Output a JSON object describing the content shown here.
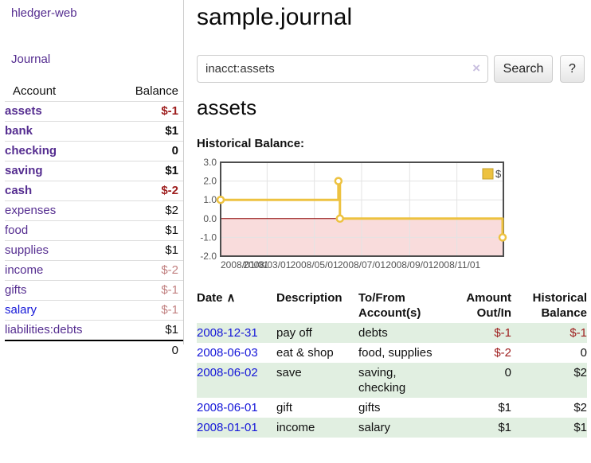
{
  "colors": {
    "purple": "#552d90",
    "blue": "#1517d8",
    "neg": "#9d1c1c",
    "negdim": "#c17f7f",
    "gold": "#edc240",
    "goldborder": "#c3a02c",
    "stripe": "#e1efe1",
    "pink": "#f9dcdc",
    "zeroline": "#8b0000",
    "axis": "#545454",
    "grid": "#e3e3e3",
    "border": "#4d4d4d"
  },
  "sidebar": {
    "brand": "hledger-web",
    "nav_journal": "Journal",
    "header": {
      "account": "Account",
      "balance": "Balance"
    },
    "accounts": [
      {
        "name": "assets",
        "level": 1,
        "bold": true,
        "name_color": "purple",
        "balance": "$-1",
        "tone": "neg"
      },
      {
        "name": "bank",
        "level": 2,
        "bold": true,
        "name_color": "purple",
        "balance": "$1",
        "tone": "pos"
      },
      {
        "name": "checking",
        "level": 3,
        "bold": true,
        "name_color": "purple",
        "balance": "0",
        "tone": "pos"
      },
      {
        "name": "saving",
        "level": 3,
        "bold": true,
        "name_color": "purple",
        "balance": "$1",
        "tone": "pos"
      },
      {
        "name": "cash",
        "level": 2,
        "bold": true,
        "name_color": "purple",
        "balance": "$-2",
        "tone": "neg"
      },
      {
        "name": "expenses",
        "level": 1,
        "bold": false,
        "name_color": "purple",
        "balance": "$2",
        "tone": "pos"
      },
      {
        "name": "food",
        "level": 2,
        "bold": false,
        "name_color": "purple",
        "balance": "$1",
        "tone": "pos"
      },
      {
        "name": "supplies",
        "level": 2,
        "bold": false,
        "name_color": "purple",
        "balance": "$1",
        "tone": "pos"
      },
      {
        "name": "income",
        "level": 1,
        "bold": false,
        "name_color": "purple",
        "balance": "$-2",
        "tone": "negdim"
      },
      {
        "name": "gifts",
        "level": 2,
        "bold": false,
        "name_color": "purple",
        "balance": "$-1",
        "tone": "negdim"
      },
      {
        "name": "salary",
        "level": 2,
        "bold": false,
        "name_color": "blue",
        "balance": "$-1",
        "tone": "negdim"
      },
      {
        "name": "liabilities:debts",
        "level": 1,
        "bold": false,
        "name_color": "purple",
        "balance": "$1",
        "tone": "pos"
      }
    ],
    "total": "0"
  },
  "main": {
    "title": "sample.journal",
    "search": {
      "value": "inacct:assets",
      "clear": "×",
      "button": "Search",
      "help": "?"
    },
    "account_heading": "assets"
  },
  "chart_data": {
    "type": "line",
    "title": "Historical Balance:",
    "step": true,
    "legend": {
      "label": "$",
      "position": "top-right"
    },
    "ylim": [
      -2,
      3
    ],
    "yticks": [
      "3.0",
      "2.0",
      "1.0",
      "0.0",
      "-1.0",
      "-2.0"
    ],
    "xticks": [
      {
        "date": "2008-01-01",
        "label": "2008/01/01"
      },
      {
        "date": "2008-03-01",
        "label": "2008/03/01"
      },
      {
        "date": "2008-05-01",
        "label": "2008/05/01"
      },
      {
        "date": "2008-07-01",
        "label": "2008/07/01"
      },
      {
        "date": "2008-09-01",
        "label": "2008/09/01"
      },
      {
        "date": "2008-11-01",
        "label": "2008/11/01"
      }
    ],
    "x_range": [
      "2008-01-01",
      "2008-12-31"
    ],
    "negative_region": true,
    "series": [
      {
        "name": "$",
        "color": "#edc240",
        "points": [
          {
            "date": "2008-01-01",
            "value": 1
          },
          {
            "date": "2008-06-01",
            "value": 2
          },
          {
            "date": "2008-06-03",
            "value": 0
          },
          {
            "date": "2008-12-31",
            "value": -1
          }
        ]
      }
    ]
  },
  "register": {
    "columns": [
      "Date",
      "Description",
      "To/From\nAccount(s)",
      "Amount\nOut/In",
      "Historical\nBalance"
    ],
    "sort_indicator": "∧",
    "rows": [
      {
        "date": "2008-12-31",
        "description": "pay off",
        "accounts": "debts",
        "amount": "$-1",
        "amount_tone": "neg",
        "balance": "$-1",
        "balance_tone": "neg",
        "shaded": true
      },
      {
        "date": "2008-06-03",
        "description": "eat & shop",
        "accounts": "food, supplies",
        "amount": "$-2",
        "amount_tone": "neg",
        "balance": "0",
        "balance_tone": "pos",
        "shaded": false
      },
      {
        "date": "2008-06-02",
        "description": "save",
        "accounts": "saving, checking",
        "amount": "0",
        "amount_tone": "pos",
        "balance": "$2",
        "balance_tone": "pos",
        "shaded": true
      },
      {
        "date": "2008-06-01",
        "description": "gift",
        "accounts": "gifts",
        "amount": "$1",
        "amount_tone": "pos",
        "balance": "$2",
        "balance_tone": "pos",
        "shaded": false
      },
      {
        "date": "2008-01-01",
        "description": "income",
        "accounts": "salary",
        "amount": "$1",
        "amount_tone": "pos",
        "balance": "$1",
        "balance_tone": "pos",
        "shaded": true
      }
    ]
  }
}
